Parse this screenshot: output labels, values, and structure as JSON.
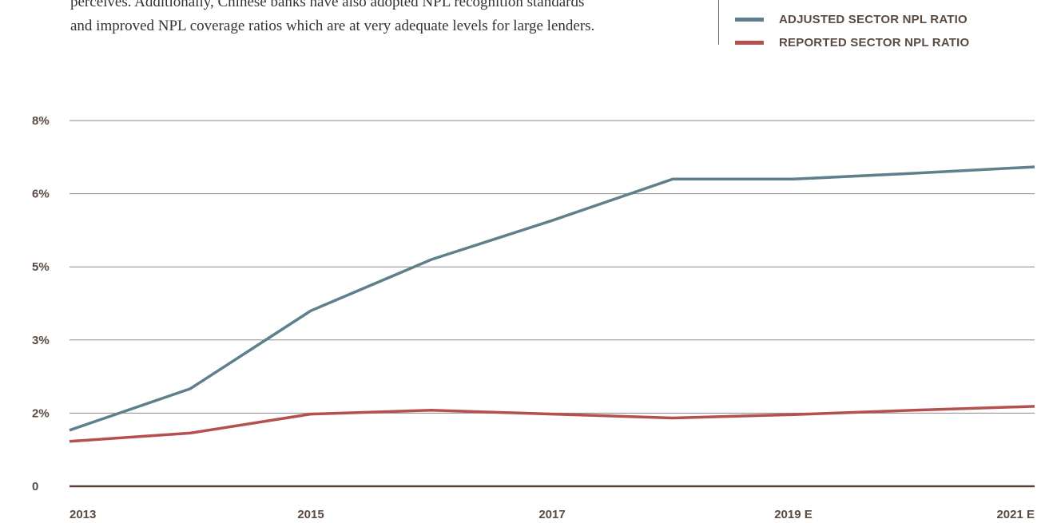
{
  "intro_lines": [
    "perceives. Additionally, Chinese banks have also adopted NPL recognition standards",
    "and improved NPL coverage ratios which are at very adequate levels for large lenders."
  ],
  "legend": [
    {
      "label": "ADJUSTED SECTOR NPL RATIO",
      "color": "#5e7f8c"
    },
    {
      "label": "REPORTED SECTOR NPL RATIO",
      "color": "#b5504c"
    }
  ],
  "chart_data": {
    "type": "line",
    "x": [
      "2013",
      "2014",
      "2015",
      "2016",
      "2017",
      "2018",
      "2019 E",
      "2020 E",
      "2021 E"
    ],
    "x_tick_labels": [
      "2013",
      "2015",
      "2017",
      "2019 E",
      "2021 E"
    ],
    "y_tick_labels": [
      "0",
      "2%",
      "3%",
      "5%",
      "6%",
      "8%"
    ],
    "ylim": [
      0,
      7.5
    ],
    "grid": true,
    "legend_position": "top-right",
    "series": [
      {
        "name": "ADJUSTED SECTOR NPL RATIO",
        "color": "#5e7f8c",
        "values": [
          1.15,
          2.0,
          3.6,
          4.65,
          5.45,
          6.3,
          6.3,
          6.42,
          6.55
        ]
      },
      {
        "name": "REPORTED SECTOR NPL RATIO",
        "color": "#b5504c",
        "values": [
          0.92,
          1.09,
          1.48,
          1.56,
          1.48,
          1.4,
          1.47,
          1.56,
          1.64
        ]
      }
    ]
  }
}
